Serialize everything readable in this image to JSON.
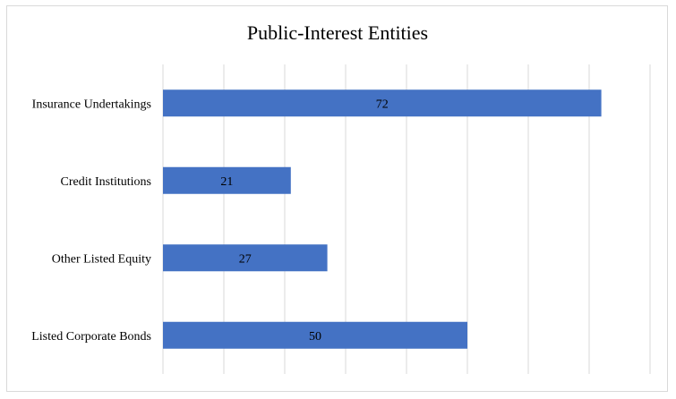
{
  "chart_data": {
    "type": "bar",
    "orientation": "horizontal",
    "title": "Public-Interest Entities",
    "categories": [
      "Insurance Undertakings",
      "Credit Institutions",
      "Other Listed Equity",
      "Listed Corporate Bonds"
    ],
    "values": [
      72,
      21,
      27,
      50
    ],
    "xlim": [
      0,
      80
    ],
    "xlabel": "",
    "ylabel": "",
    "grid": true,
    "legend": "none",
    "bar_color": "#4472c4",
    "gridline_color": "#d9d9d9"
  }
}
